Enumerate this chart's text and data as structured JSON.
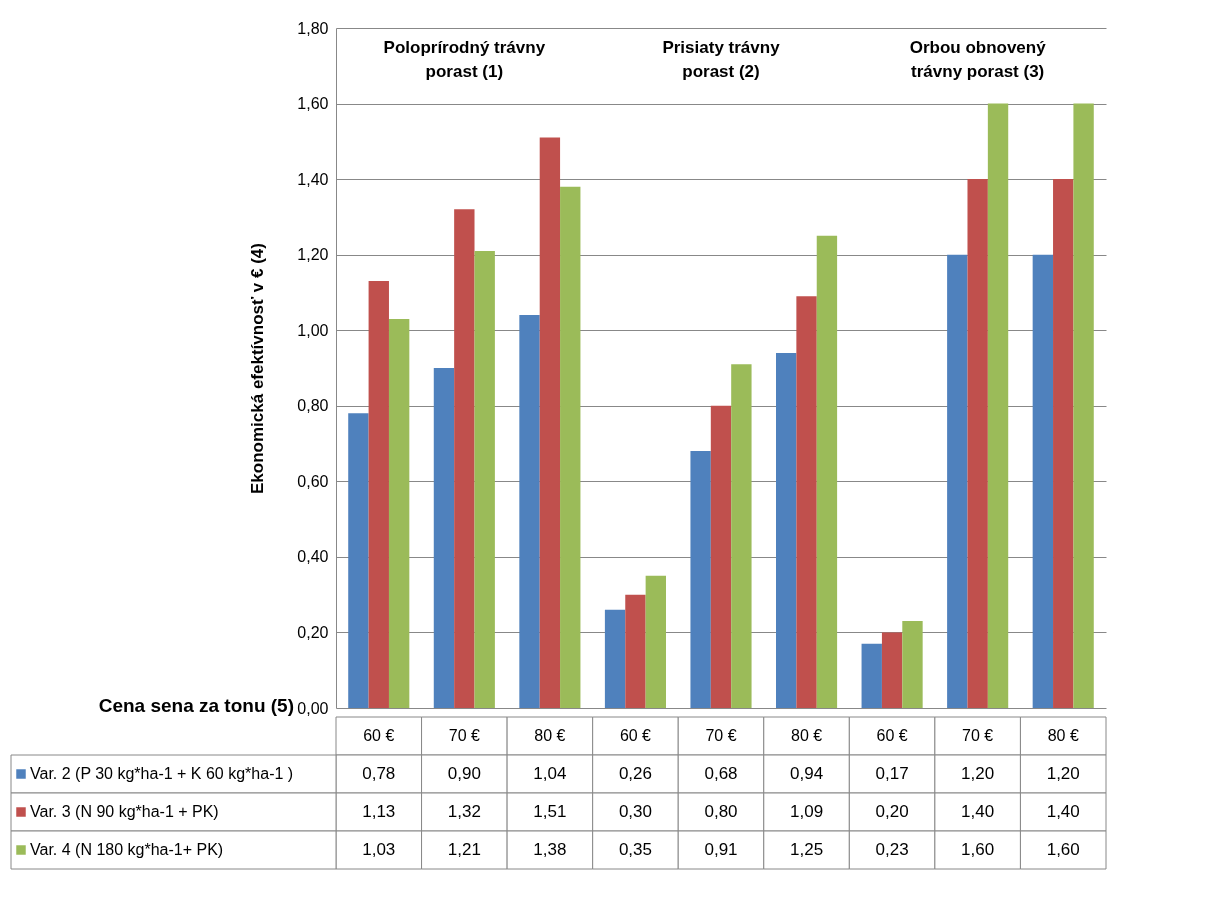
{
  "chart_data": {
    "type": "bar",
    "categories": [
      "60 €",
      "70 €",
      "80 €",
      "60 €",
      "70 €",
      "80 €",
      "60 €",
      "70 €",
      "80 €"
    ],
    "series": [
      {
        "name": "Var. 2 (P 30 kg*ha-1 + K 60 kg*ha-1 )",
        "color": "#4f81bd",
        "values": [
          0.78,
          0.9,
          1.04,
          0.26,
          0.68,
          0.94,
          0.17,
          1.2,
          1.2
        ],
        "value_labels": [
          "0,78",
          "0,90",
          "1,04",
          "0,26",
          "0,68",
          "0,94",
          "0,17",
          "1,20",
          "1,20"
        ]
      },
      {
        "name": "Var. 3 (N 90 kg*ha-1 + PK)",
        "color": "#c0504d",
        "values": [
          1.13,
          1.32,
          1.51,
          0.3,
          0.8,
          1.09,
          0.2,
          1.4,
          1.4
        ],
        "value_labels": [
          "1,13",
          "1,32",
          "1,51",
          "0,30",
          "0,80",
          "1,09",
          "0,20",
          "1,40",
          "1,40"
        ]
      },
      {
        "name": "Var. 4 (N 180 kg*ha-1+ PK)",
        "color": "#9bbb59",
        "values": [
          1.03,
          1.21,
          1.38,
          0.35,
          0.91,
          1.25,
          0.23,
          1.6,
          1.6
        ],
        "value_labels": [
          "1,03",
          "1,21",
          "1,38",
          "0,35",
          "0,91",
          "1,25",
          "0,23",
          "1,60",
          "1,60"
        ]
      }
    ],
    "ylabel": "Ekonomická efektívnosť v € (4)",
    "xlabel": "Cena sena za tonu (5)",
    "annotations": [
      "Poloprírodný trávny\nporast (1)",
      "Prisiaty trávny\nporast (2)",
      "Orbou obnovený\ntrávny porast (3)"
    ],
    "ylim": [
      0,
      1.8
    ],
    "yticks": [
      {
        "value": 0,
        "label": "0,00"
      },
      {
        "value": 0.2,
        "label": "0,20"
      },
      {
        "value": 0.4,
        "label": "0,40"
      },
      {
        "value": 0.6,
        "label": "0,60"
      },
      {
        "value": 0.8,
        "label": "0,80"
      },
      {
        "value": 1,
        "label": "1,00"
      },
      {
        "value": 1.2,
        "label": "1,20"
      },
      {
        "value": 1.4,
        "label": "1,40"
      },
      {
        "value": 1.6,
        "label": "1,60"
      },
      {
        "value": 1.8,
        "label": "1,80"
      }
    ],
    "grid": "y",
    "legend": "bottom"
  }
}
